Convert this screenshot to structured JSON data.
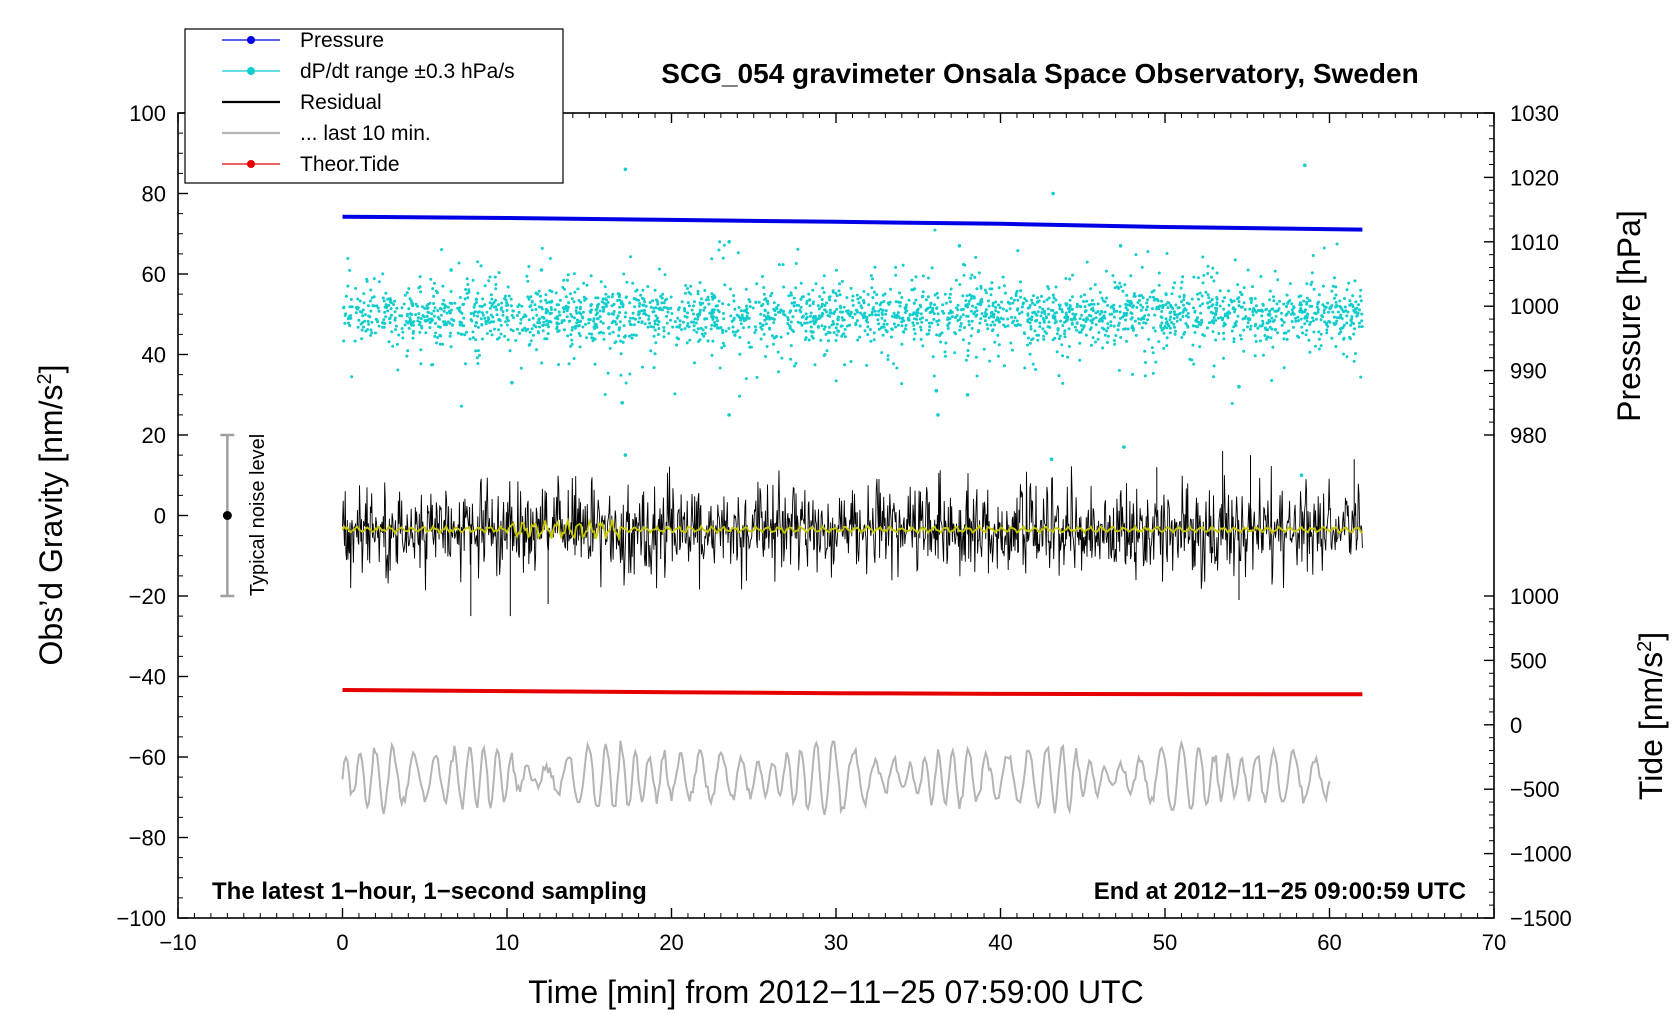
{
  "chart_data": {
    "type": "line",
    "title": "SCG_054 gravimeter Onsala Space Observatory, Sweden",
    "xlabel": "Time [min] from 2012−11−25 07:59:00 UTC",
    "ylabel_left": "Obs’d Gravity [nm/s²]",
    "ylabel_left_parts": {
      "base": "Obs’d Gravity [nm/s",
      "sup": "2",
      "end": "]"
    },
    "ylabel_right_pressure": "Pressure [hPa]",
    "ylabel_right_tide": "Tide [nm/s²]",
    "ylabel_right_tide_parts": {
      "base": "Tide [nm/s",
      "sup": "2",
      "end": "]"
    },
    "xlim": [
      -10,
      70
    ],
    "ylim": [
      -100,
      100
    ],
    "x_ticks": [
      -10,
      0,
      10,
      20,
      30,
      40,
      50,
      60,
      70
    ],
    "x_tick_labels": [
      "−10",
      "0",
      "10",
      "20",
      "30",
      "40",
      "50",
      "60",
      "70"
    ],
    "y_ticks": [
      -100,
      -80,
      -60,
      -40,
      -20,
      0,
      20,
      40,
      60,
      80,
      100
    ],
    "y_tick_labels": [
      "−100",
      "−80",
      "−60",
      "−40",
      "−20",
      "0",
      "20",
      "40",
      "60",
      "80",
      "100"
    ],
    "pressure_axis": {
      "range": [
        980,
        1030
      ],
      "gravity_at_range": [
        20,
        100
      ],
      "ticks": [
        980,
        990,
        1000,
        1010,
        1020,
        1030
      ],
      "tick_labels": [
        "980",
        "990",
        "1000",
        "1010",
        "1020",
        "1030"
      ]
    },
    "tide_axis": {
      "range": [
        -1500,
        1000
      ],
      "gravity_at_range": [
        -100,
        -20
      ],
      "ticks": [
        -1500,
        -1000,
        -500,
        0,
        500,
        1000
      ],
      "tick_labels": [
        "−1500",
        "−1000",
        "−500",
        "0",
        "500",
        "1000"
      ]
    },
    "legend": [
      {
        "label": "Pressure",
        "color": "#0000e6",
        "style": "line-dot"
      },
      {
        "label": "dP/dt range ±0.3 hPa/s",
        "color": "#10cccc",
        "style": "line-dot"
      },
      {
        "label": "Residual",
        "color": "#000000",
        "style": "line"
      },
      {
        "label": "... last 10 min.",
        "color": "#b4b4b4",
        "style": "line"
      },
      {
        "label": "Theor.Tide",
        "color": "#e60000",
        "style": "line-dot"
      }
    ],
    "series": [
      {
        "name": "Pressure",
        "color": "#0000e6",
        "axis": "pressure_hPa",
        "x": [
          0,
          10,
          20,
          30,
          40,
          50,
          62
        ],
        "values": [
          1013.9,
          1013.7,
          1013.4,
          1013.1,
          1012.8,
          1012.3,
          1011.9
        ]
      },
      {
        "name": "dP/dt range ±0.3 hPa/s",
        "color": "#10cccc",
        "axis": "gravity",
        "center": 50,
        "typical_spread": 7,
        "outliers": [
          {
            "x": 17.2,
            "y": 86
          },
          {
            "x": 58.5,
            "y": 87
          },
          {
            "x": 43.2,
            "y": 80
          },
          {
            "x": 23.5,
            "y": 68
          },
          {
            "x": 47.3,
            "y": 67
          },
          {
            "x": 37.5,
            "y": 67
          },
          {
            "x": 10.3,
            "y": 33
          },
          {
            "x": 36.1,
            "y": 31
          },
          {
            "x": 38.0,
            "y": 30
          },
          {
            "x": 54.5,
            "y": 32
          },
          {
            "x": 17.0,
            "y": 28
          },
          {
            "x": 23.5,
            "y": 25
          },
          {
            "x": 36.2,
            "y": 25
          },
          {
            "x": 17.2,
            "y": 15
          },
          {
            "x": 43.1,
            "y": 14
          },
          {
            "x": 47.5,
            "y": 17
          },
          {
            "x": 58.3,
            "y": 10
          },
          {
            "x": 6.6,
            "y": 61
          },
          {
            "x": 12.1,
            "y": 61
          }
        ]
      },
      {
        "name": "Residual",
        "color": "#000000",
        "axis": "gravity",
        "center": -3.5,
        "typical_amplitude": 9,
        "extremes": [
          {
            "x": 7.8,
            "y": -25
          },
          {
            "x": 10.2,
            "y": -25
          },
          {
            "x": 12.5,
            "y": -22
          },
          {
            "x": 54.5,
            "y": -21
          },
          {
            "x": 53.5,
            "y": 16
          },
          {
            "x": 55.2,
            "y": 15
          },
          {
            "x": 49.5,
            "y": 12
          },
          {
            "x": 61.5,
            "y": 14
          }
        ]
      },
      {
        "name": "Residual (smoothed)",
        "color": "#c8c800",
        "axis": "gravity",
        "center": -3.5,
        "note": "larger wiggle between x=10 and x=17"
      },
      {
        "name": "... last 10 min.",
        "color": "#b4b4b4",
        "axis": "gravity",
        "center": -65,
        "typical_amplitude": 6,
        "x_range": [
          0,
          60
        ]
      },
      {
        "name": "Theor.Tide",
        "color": "#e60000",
        "axis": "tide_nm_s2",
        "x": [
          0,
          10,
          20,
          30,
          40,
          50,
          62
        ],
        "values": [
          270,
          262,
          252,
          245,
          240,
          238,
          237
        ]
      }
    ],
    "noise_bar": {
      "label": "Typical noise level",
      "x": -7,
      "center": 0,
      "low": -20,
      "high": 20
    },
    "annotations": {
      "bottom_left": "The latest 1−hour, 1−second sampling",
      "bottom_right": "End at 2012−11−25 09:00:59 UTC"
    }
  }
}
